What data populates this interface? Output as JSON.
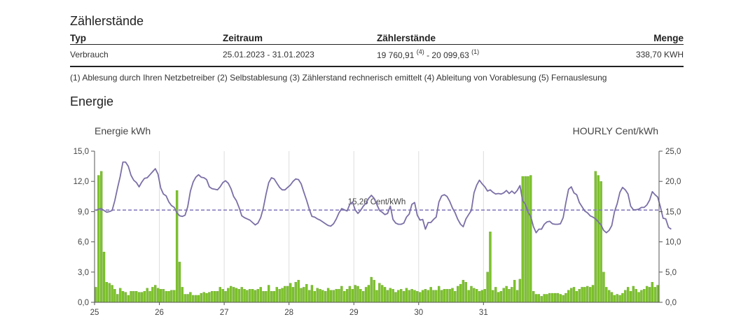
{
  "meter_section": {
    "title": "Zählerstände",
    "columns": [
      "Typ",
      "Zeitraum",
      "Zählerstände",
      "Menge"
    ],
    "row": {
      "typ": "Verbrauch",
      "zeitraum": "25.01.2023 - 31.01.2023",
      "reading_start": "19 760,91",
      "reading_start_note": "(4)",
      "separator": " - ",
      "reading_end": "20 099,63",
      "reading_end_note": "(1)",
      "menge": "338,70 KWH"
    },
    "footnote": "(1) Ablesung durch Ihren Netzbetreiber (2) Selbstablesung (3) Zählerstand rechnerisch emittelt (4) Ableitung von Vorablesung (5) Fernauslesung"
  },
  "energy_section": {
    "title": "Energie"
  },
  "colors": {
    "energy": "#7dc22c",
    "energy_dark": "#5a9a18",
    "price": "#7b6fa6",
    "average": "#8a7fc0",
    "grid": "#dddddd"
  },
  "chart_data": {
    "type": "bar+line",
    "left_axis_label": "Energie kWh",
    "right_axis_label": "HOURLY Cent/kWh",
    "y_left": {
      "ylim": [
        0,
        15
      ],
      "ticks": [
        "0,0",
        "3,0",
        "6,0",
        "9,0",
        "12,0",
        "15,0"
      ]
    },
    "y_right": {
      "ylim": [
        0,
        25
      ],
      "ticks": [
        "0,0",
        "5,0",
        "10,0",
        "15,0",
        "20,0",
        "25,0"
      ]
    },
    "x_ticks": [
      "25",
      "26",
      "27",
      "28",
      "29",
      "30",
      "31"
    ],
    "average_line": {
      "value": 15.26,
      "label": "15,26 Cent/kWh"
    },
    "grid": "vertical day lines",
    "energy_series": {
      "name": "Energie kWh",
      "values": [
        1.5,
        12.6,
        13.0,
        5.0,
        2.0,
        1.9,
        1.7,
        1.3,
        0.8,
        1.4,
        1.1,
        1.0,
        0.7,
        1.1,
        1.1,
        1.1,
        1.0,
        1.0,
        1.1,
        1.4,
        1.1,
        1.5,
        1.7,
        1.4,
        1.3,
        1.3,
        1.1,
        1.1,
        1.2,
        1.2,
        11.1,
        4.0,
        1.5,
        0.8,
        0.8,
        1.0,
        0.7,
        0.7,
        0.7,
        0.9,
        1.0,
        0.9,
        1.0,
        1.1,
        1.1,
        1.1,
        1.5,
        1.3,
        1.1,
        1.4,
        1.6,
        1.5,
        1.4,
        1.3,
        1.5,
        1.3,
        1.2,
        1.3,
        1.3,
        1.2,
        1.3,
        1.5,
        1.1,
        1.1,
        1.7,
        1.1,
        1.1,
        1.5,
        1.3,
        1.4,
        1.6,
        1.6,
        1.9,
        1.5,
        2.0,
        2.2,
        1.4,
        1.5,
        1.8,
        1.2,
        1.7,
        1.1,
        1.4,
        1.3,
        1.2,
        1.1,
        1.4,
        1.2,
        1.2,
        1.3,
        1.3,
        1.6,
        1.1,
        1.3,
        1.6,
        1.3,
        1.7,
        1.6,
        1.3,
        1.1,
        1.5,
        1.7,
        2.5,
        2.2,
        1.2,
        1.9,
        1.7,
        1.5,
        1.2,
        1.4,
        1.3,
        1.0,
        1.2,
        1.3,
        1.1,
        1.4,
        1.2,
        1.3,
        1.2,
        1.1,
        1.0,
        1.2,
        1.3,
        1.2,
        1.5,
        1.2,
        1.2,
        1.6,
        1.2,
        1.3,
        1.3,
        1.3,
        1.4,
        1.1,
        1.6,
        1.8,
        2.2,
        2.0,
        1.2,
        1.6,
        1.4,
        1.3,
        1.1,
        1.2,
        1.3,
        3.0,
        7.0,
        1.2,
        1.5,
        1.0,
        1.1,
        1.4,
        1.6,
        1.3,
        1.5,
        2.2,
        1.2,
        2.3,
        12.5,
        12.5,
        12.5,
        12.6,
        1.1,
        0.8,
        0.8,
        0.6,
        0.8,
        0.8,
        0.9,
        0.9,
        0.9,
        0.9,
        0.8,
        0.7,
        0.9,
        1.2,
        1.4,
        1.5,
        1.1,
        1.3,
        1.5,
        1.5,
        1.6,
        1.5,
        1.7,
        13.0,
        12.6,
        12.0,
        3.0,
        1.5,
        1.2,
        1.0,
        0.7,
        0.8,
        0.7,
        0.9,
        1.2,
        1.5,
        1.1,
        1.6,
        1.3,
        1.0,
        1.2,
        1.3,
        1.6,
        1.5,
        2.0,
        1.5,
        1.7
      ]
    },
    "price_series": {
      "name": "HOURLY Cent/kWh",
      "values": [
        15.2,
        15.4,
        15.5,
        15.2,
        14.9,
        15.0,
        15.2,
        16.8,
        18.9,
        20.8,
        23.2,
        23.2,
        22.5,
        21.0,
        20.2,
        19.8,
        19.1,
        19.9,
        20.5,
        20.6,
        21.1,
        21.6,
        22.1,
        21.2,
        18.9,
        17.9,
        17.6,
        16.6,
        16.0,
        15.7,
        14.8,
        14.3,
        14.2,
        14.4,
        15.8,
        18.4,
        19.9,
        20.7,
        21.1,
        20.7,
        20.6,
        20.3,
        19.1,
        18.8,
        18.7,
        18.6,
        19.1,
        19.8,
        20.1,
        19.7,
        18.8,
        17.5,
        16.8,
        15.7,
        14.3,
        14.0,
        13.8,
        13.6,
        13.2,
        12.8,
        13.1,
        14.0,
        15.6,
        17.9,
        19.8,
        20.6,
        20.4,
        19.7,
        19.0,
        18.6,
        18.6,
        19.0,
        19.4,
        20.0,
        20.4,
        20.3,
        19.6,
        18.2,
        16.9,
        15.4,
        14.2,
        14.1,
        13.8,
        13.6,
        13.3,
        13.0,
        12.7,
        12.6,
        13.0,
        13.8,
        14.8,
        15.5,
        15.3,
        15.1,
        16.2,
        16.6,
        15.3,
        14.7,
        15.2,
        15.9,
        16.4,
        17.2,
        17.7,
        17.2,
        16.2,
        15.2,
        14.9,
        14.5,
        14.7,
        15.9,
        13.7,
        13.1,
        12.9,
        12.9,
        13.1,
        14.1,
        14.6,
        16.2,
        16.5,
        14.4,
        13.6,
        13.7,
        12.1,
        13.2,
        13.2,
        13.7,
        14.1,
        16.6,
        17.6,
        17.8,
        17.5,
        16.7,
        15.6,
        14.8,
        13.7,
        12.9,
        12.5,
        13.8,
        14.5,
        15.2,
        18.1,
        19.4,
        20.2,
        19.6,
        19.1,
        18.4,
        18.6,
        18.2,
        17.9,
        18.0,
        17.9,
        18.1,
        18.5,
        18.0,
        18.4,
        18.0,
        18.5,
        19.3,
        16.8,
        16.2,
        14.9,
        14.2,
        12.5,
        11.5,
        12.1,
        12.1,
        12.9,
        13.3,
        13.4,
        13.0,
        12.9,
        12.9,
        13.0,
        14.0,
        16.5,
        18.7,
        19.1,
        18.1,
        17.8,
        16.5,
        15.8,
        15.1,
        14.8,
        14.3,
        14.1,
        13.8,
        13.3,
        12.8,
        11.9,
        11.5,
        11.9,
        12.7,
        15.0,
        16.3,
        18.2,
        19.0,
        18.6,
        17.9,
        15.9,
        15.3,
        15.3,
        15.4,
        15.7,
        15.7,
        16.1,
        16.9,
        18.3,
        17.8,
        17.4,
        15.8,
        13.9,
        13.8,
        12.4,
        12.1
      ]
    }
  }
}
